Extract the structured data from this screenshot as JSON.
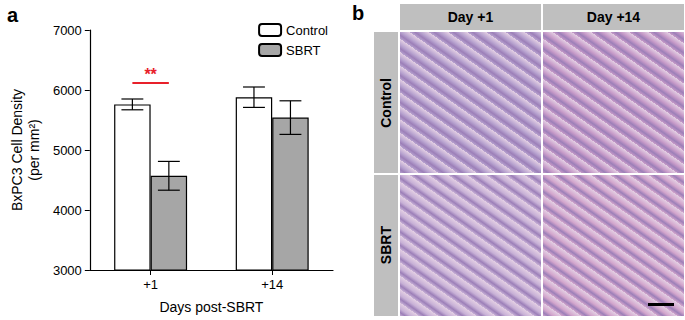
{
  "chart_data": {
    "type": "bar",
    "title": "a",
    "categories": [
      "+1",
      "+14"
    ],
    "series": [
      {
        "name": "Control",
        "color": "#ffffff",
        "values": [
          5760,
          5880
        ],
        "errors": [
          90,
          170
        ]
      },
      {
        "name": "SBRT",
        "color": "#a6a6a6",
        "values": [
          4570,
          5540
        ],
        "errors": [
          240,
          280
        ]
      }
    ],
    "xlabel": "Days post-SBRT",
    "ylabel": "BxPC3 Cell Density\n(per mm²)",
    "ylim": [
      3000,
      7000
    ],
    "yticks": [
      3000,
      4000,
      5000,
      6000,
      7000
    ],
    "grid": false,
    "legend": "upper right",
    "annotations": [
      {
        "text": "**",
        "category": "+1",
        "color": "#e8202a"
      }
    ]
  },
  "image_panel": {
    "label": "b",
    "columns": [
      "Day +1",
      "Day +14"
    ],
    "rows": [
      "Control",
      "SBRT"
    ]
  }
}
